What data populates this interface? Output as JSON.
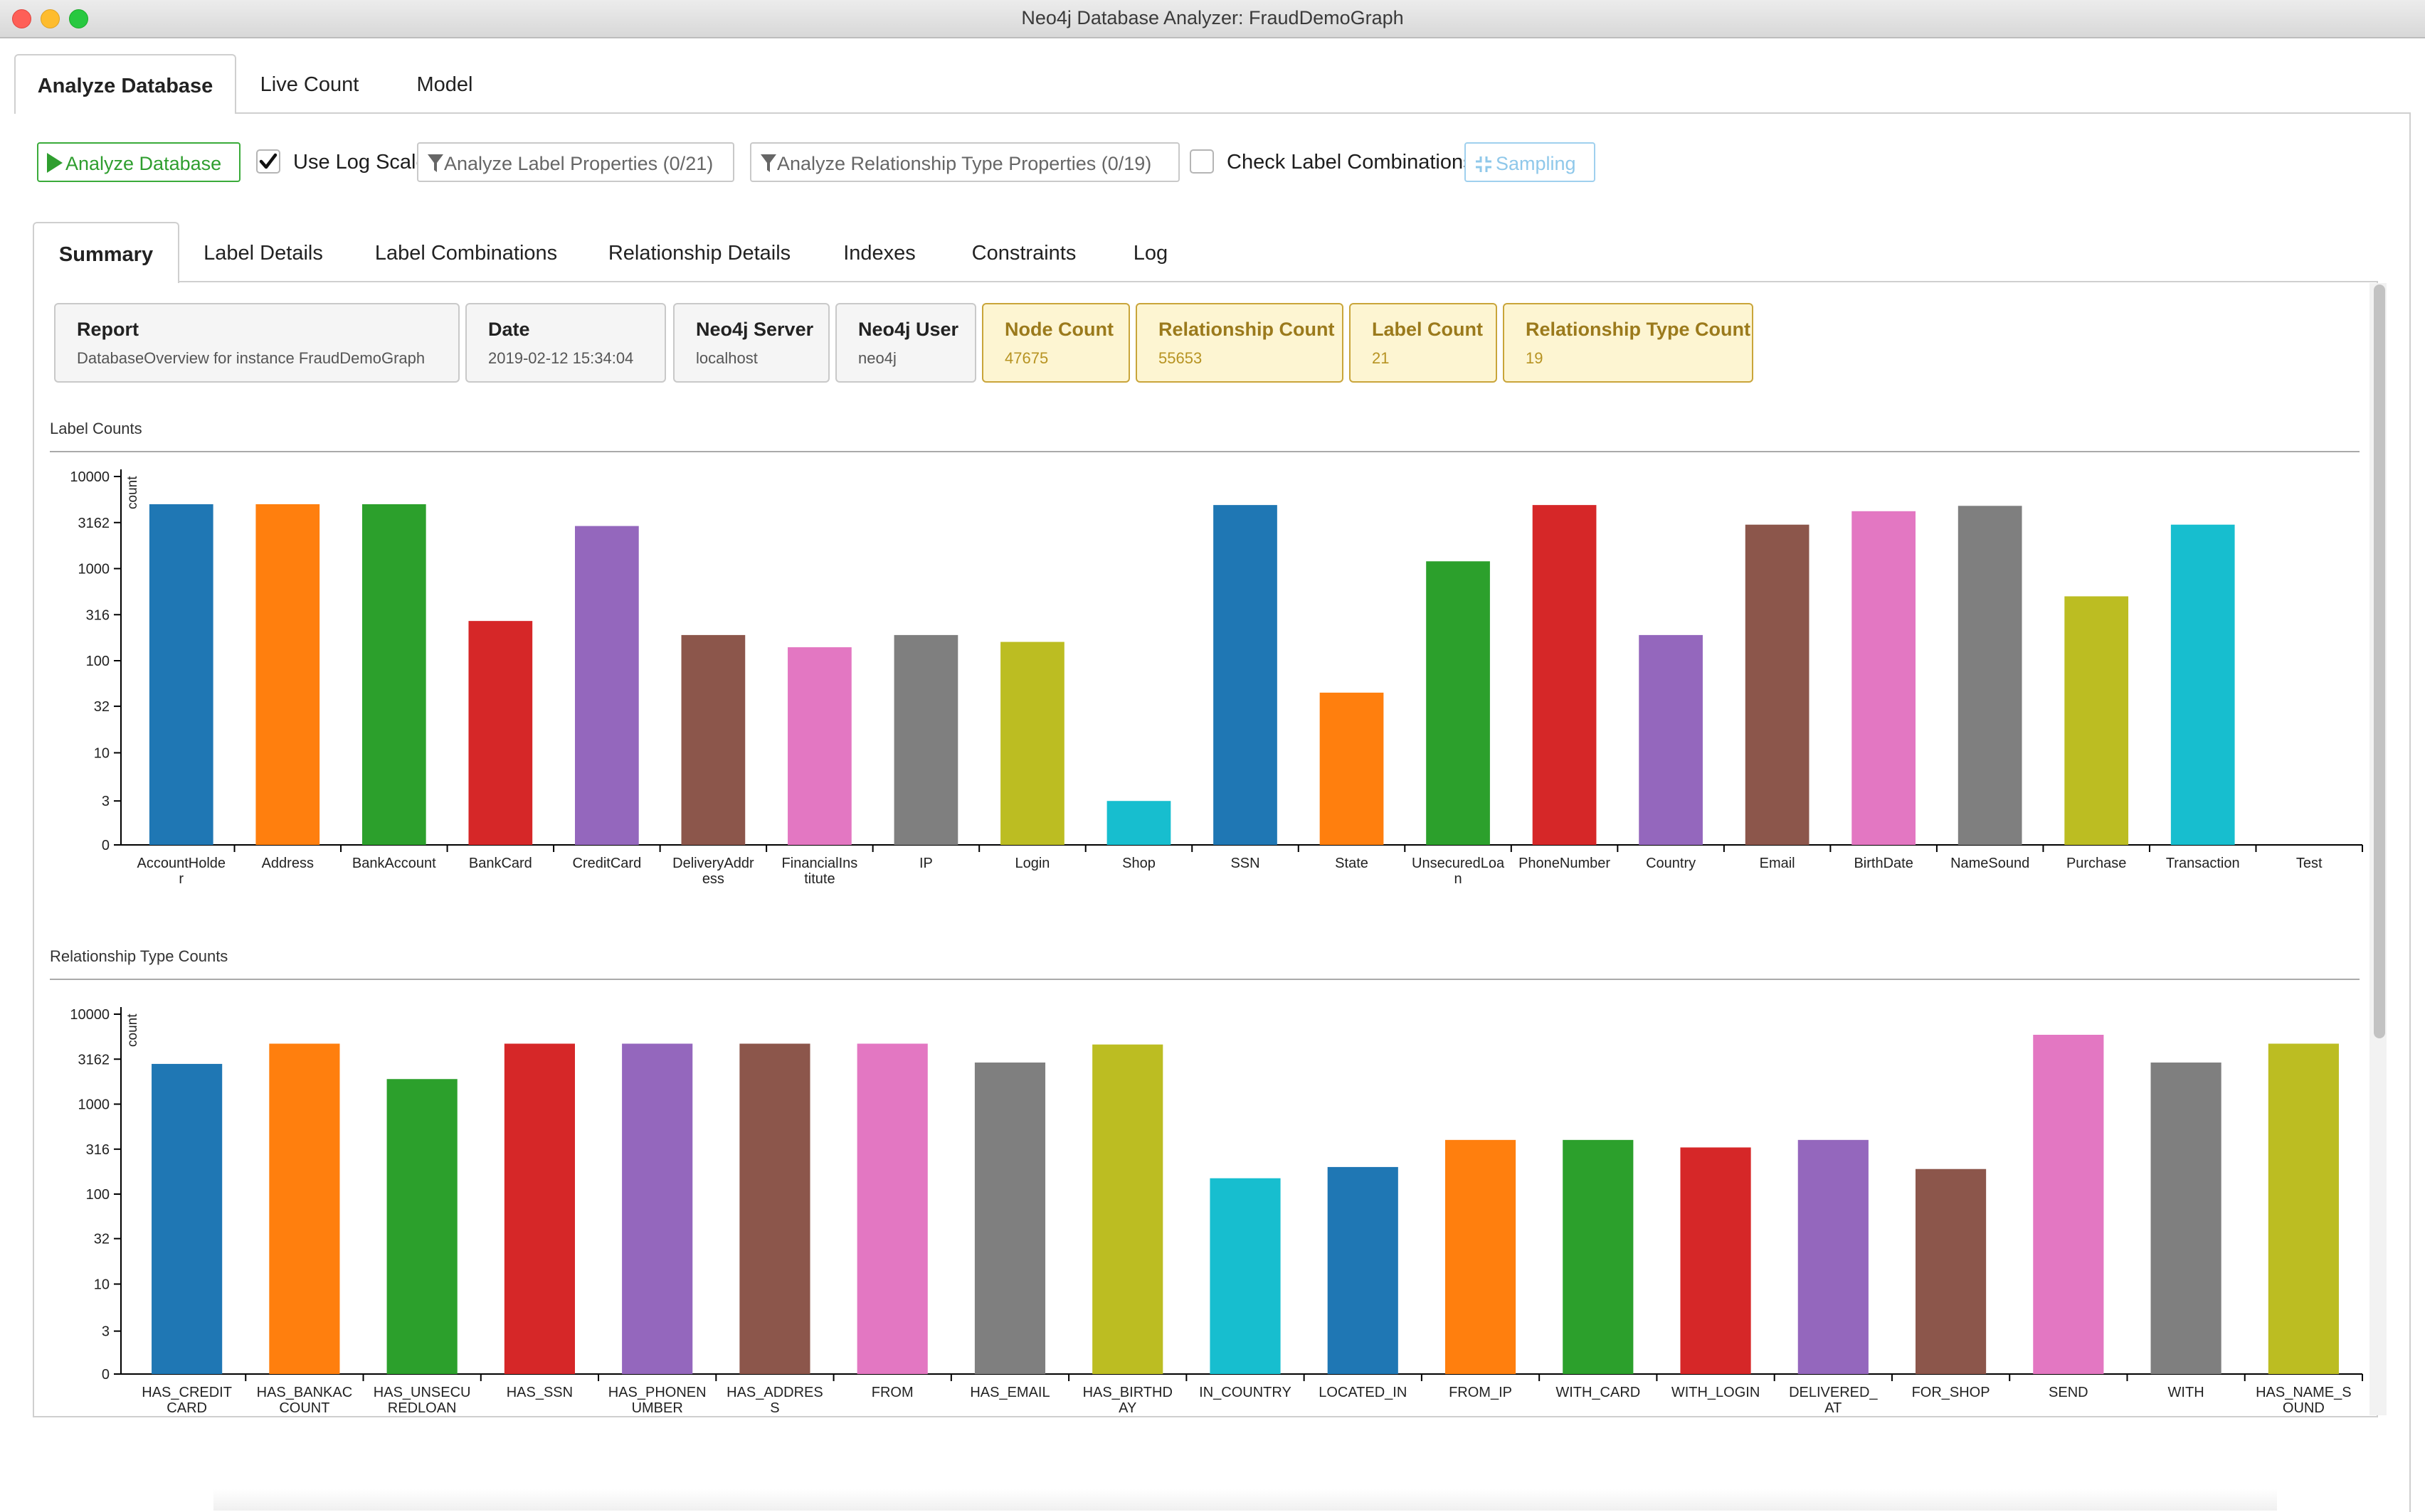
{
  "window": {
    "title": "Neo4j Database Analyzer: FraudDemoGraph"
  },
  "outer_tabs": [
    "Analyze Database",
    "Live Count",
    "Model"
  ],
  "toolbar": {
    "analyze_button": "Analyze Database",
    "log_scale_label": "Use Log Scale",
    "log_scale_checked": true,
    "label_props_button": "Analyze Label Properties (0/21)",
    "rel_props_button": "Analyze Relationship Type Properties (0/19)",
    "label_combos_label": "Check Label Combinations",
    "label_combos_checked": false,
    "sampling_button": "Sampling"
  },
  "inner_tabs": [
    "Summary",
    "Label Details",
    "Label Combinations",
    "Relationship Details",
    "Indexes",
    "Constraints",
    "Log"
  ],
  "summary_cards": [
    {
      "label": "Report",
      "value": "DatabaseOverview for instance FraudDemoGraph",
      "highlight": false
    },
    {
      "label": "Date",
      "value": "2019-02-12 15:34:04",
      "highlight": false
    },
    {
      "label": "Neo4j Server",
      "value": "localhost",
      "highlight": false
    },
    {
      "label": "Neo4j User",
      "value": "neo4j",
      "highlight": false
    },
    {
      "label": "Node Count",
      "value": "47675",
      "highlight": true
    },
    {
      "label": "Relationship Count",
      "value": "55653",
      "highlight": true
    },
    {
      "label": "Label Count",
      "value": "21",
      "highlight": true
    },
    {
      "label": "Relationship Type Count",
      "value": "19",
      "highlight": true
    }
  ],
  "sections": {
    "label_counts": "Label Counts",
    "relationship_counts": "Relationship Type Counts"
  },
  "chart_data": [
    {
      "type": "bar",
      "title": "Label Counts",
      "ylabel": "count",
      "yscale": "log",
      "ylim": [
        0,
        10000
      ],
      "yticks": [
        "10000",
        "3162",
        "1000",
        "316",
        "100",
        "32",
        "10",
        "3",
        "0"
      ],
      "categories": [
        "AccountHolder",
        "Address",
        "BankAccount",
        "BankCard",
        "CreditCard",
        "DeliveryAddress",
        "FinancialInstitute",
        "IP",
        "Login",
        "Shop",
        "SSN",
        "State",
        "UnsecuredLoan",
        "PhoneNumber",
        "Country",
        "Email",
        "BirthDate",
        "NameSound",
        "Purchase",
        "Transaction",
        "Test"
      ],
      "category_labels": [
        [
          "AccountHolde",
          "r"
        ],
        [
          "Address"
        ],
        [
          "BankAccount"
        ],
        [
          "BankCard"
        ],
        [
          "CreditCard"
        ],
        [
          "DeliveryAddr",
          "ess"
        ],
        [
          "FinancialIns",
          "titute"
        ],
        [
          "IP"
        ],
        [
          "Login"
        ],
        [
          "Shop"
        ],
        [
          "SSN"
        ],
        [
          "State"
        ],
        [
          "UnsecuredLoa",
          "n"
        ],
        [
          "PhoneNumber"
        ],
        [
          "Country"
        ],
        [
          "Email"
        ],
        [
          "BirthDate"
        ],
        [
          "NameSound"
        ],
        [
          "Purchase"
        ],
        [
          "Transaction"
        ],
        [
          "Test"
        ]
      ],
      "values": [
        5000,
        5000,
        5000,
        270,
        2900,
        190,
        140,
        190,
        160,
        3,
        4900,
        45,
        1200,
        4900,
        190,
        3000,
        4200,
        4800,
        500,
        3000,
        0
      ],
      "colors": [
        "#1f77b4",
        "#ff7f0e",
        "#2ca02c",
        "#d62728",
        "#9467bd",
        "#8c564b",
        "#e377c2",
        "#7f7f7f",
        "#bcbd22",
        "#17becf",
        "#1f77b4",
        "#ff7f0e",
        "#2ca02c",
        "#d62728",
        "#9467bd",
        "#8c564b",
        "#e377c2",
        "#7f7f7f",
        "#bcbd22",
        "#17becf",
        "#1f77b4"
      ],
      "grid": false,
      "legend": "none"
    },
    {
      "type": "bar",
      "title": "Relationship Type Counts",
      "ylabel": "count",
      "yscale": "log",
      "ylim": [
        0,
        10000
      ],
      "yticks": [
        "10000",
        "3162",
        "1000",
        "316",
        "100",
        "32",
        "10",
        "3",
        "0"
      ],
      "categories": [
        "HAS_CREDITCARD",
        "HAS_BANKACCOUNT",
        "HAS_UNSECUREDLOAN",
        "HAS_SSN",
        "HAS_PHONENUMBER",
        "HAS_ADDRESS",
        "FROM",
        "HAS_EMAIL",
        "HAS_BIRTHDAY",
        "IN_COUNTRY",
        "LOCATED_IN",
        "FROM_IP",
        "WITH_CARD",
        "WITH_LOGIN",
        "DELIVERED_AT",
        "FOR_SHOP",
        "SEND",
        "WITH",
        "HAS_NAME_SOUND"
      ],
      "category_labels": [
        [
          "HAS_CREDIT",
          "CARD"
        ],
        [
          "HAS_BANKAC",
          "COUNT"
        ],
        [
          "HAS_UNSECU",
          "REDLOAN"
        ],
        [
          "HAS_SSN"
        ],
        [
          "HAS_PHONEN",
          "UMBER"
        ],
        [
          "HAS_ADDRES",
          "S"
        ],
        [
          "FROM"
        ],
        [
          "HAS_EMAIL"
        ],
        [
          "HAS_BIRTHD",
          "AY"
        ],
        [
          "IN_COUNTRY"
        ],
        [
          "LOCATED_IN"
        ],
        [
          "FROM_IP"
        ],
        [
          "WITH_CARD"
        ],
        [
          "WITH_LOGIN"
        ],
        [
          "DELIVERED_",
          "AT"
        ],
        [
          "FOR_SHOP"
        ],
        [
          "SEND"
        ],
        [
          "WITH"
        ],
        [
          "HAS_NAME_S",
          "OUND"
        ]
      ],
      "values": [
        2800,
        4700,
        1900,
        4700,
        4700,
        4700,
        4700,
        2900,
        4600,
        150,
        200,
        400,
        400,
        330,
        400,
        190,
        5900,
        2900,
        4700
      ],
      "colors": [
        "#1f77b4",
        "#ff7f0e",
        "#2ca02c",
        "#d62728",
        "#9467bd",
        "#8c564b",
        "#e377c2",
        "#7f7f7f",
        "#bcbd22",
        "#17becf",
        "#1f77b4",
        "#ff7f0e",
        "#2ca02c",
        "#d62728",
        "#9467bd",
        "#8c564b",
        "#e377c2",
        "#7f7f7f",
        "#bcbd22"
      ],
      "grid": false,
      "legend": "none"
    }
  ]
}
